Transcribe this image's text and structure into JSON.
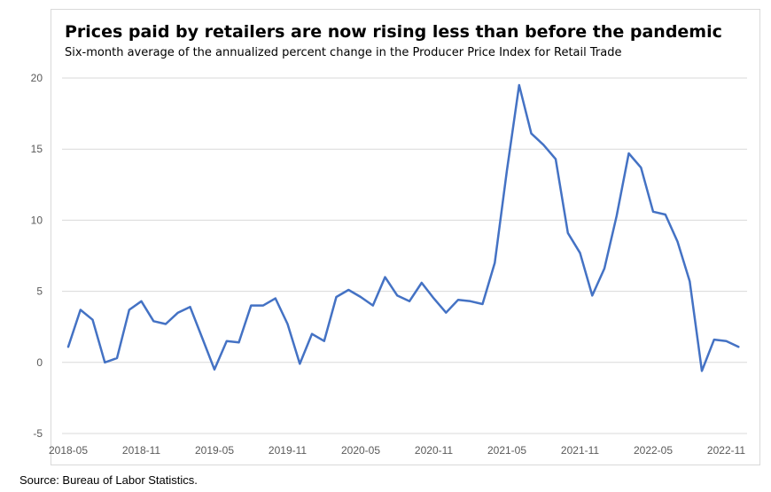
{
  "source": "Source: Bureau of Labor Statistics.",
  "chart_data": {
    "type": "line",
    "title": "Prices paid by retailers are now rising less than before the pandemic",
    "subtitle": "Six-month average of the annualized percent change in the Producer Price Index for Retail Trade",
    "xlabel": "",
    "ylabel": "",
    "ylim": [
      -5,
      20
    ],
    "yticks": [
      -5,
      0,
      5,
      10,
      15,
      20
    ],
    "grid": true,
    "legend": "none",
    "line_color": "#4472c4",
    "x_tick_labels": [
      "2018-05",
      "2018-11",
      "2019-05",
      "2019-11",
      "2020-05",
      "2020-11",
      "2021-05",
      "2021-11",
      "2022-05",
      "2022-11"
    ],
    "x": [
      "2018-05",
      "2018-06",
      "2018-07",
      "2018-08",
      "2018-09",
      "2018-10",
      "2018-11",
      "2018-12",
      "2019-01",
      "2019-02",
      "2019-03",
      "2019-04",
      "2019-05",
      "2019-06",
      "2019-07",
      "2019-08",
      "2019-09",
      "2019-10",
      "2019-11",
      "2019-12",
      "2020-01",
      "2020-02",
      "2020-03",
      "2020-04",
      "2020-05",
      "2020-06",
      "2020-07",
      "2020-08",
      "2020-09",
      "2020-10",
      "2020-11",
      "2020-12",
      "2021-01",
      "2021-02",
      "2021-03",
      "2021-04",
      "2021-05",
      "2021-06",
      "2021-07",
      "2021-08",
      "2021-09",
      "2021-10",
      "2021-11",
      "2021-12",
      "2022-01",
      "2022-02",
      "2022-03",
      "2022-04",
      "2022-05",
      "2022-06",
      "2022-07",
      "2022-08",
      "2022-09",
      "2022-10",
      "2022-11",
      "2022-12"
    ],
    "series": [
      {
        "values": [
          1.1,
          3.7,
          3.0,
          0.0,
          0.3,
          3.7,
          4.3,
          2.9,
          2.7,
          3.5,
          3.9,
          1.7,
          -0.5,
          1.5,
          1.4,
          4.0,
          4.0,
          4.5,
          2.7,
          -0.1,
          2.0,
          1.5,
          4.6,
          5.1,
          4.6,
          4.0,
          6.0,
          4.7,
          4.3,
          5.6,
          4.5,
          3.5,
          4.4,
          4.3,
          4.1,
          7.0,
          13.5,
          19.5,
          16.1,
          15.3,
          14.3,
          9.1,
          7.7,
          4.7,
          6.6,
          10.3,
          14.7,
          13.7,
          10.6,
          10.4,
          8.5,
          5.7,
          -0.6,
          1.6,
          1.5,
          1.1
        ]
      }
    ]
  }
}
